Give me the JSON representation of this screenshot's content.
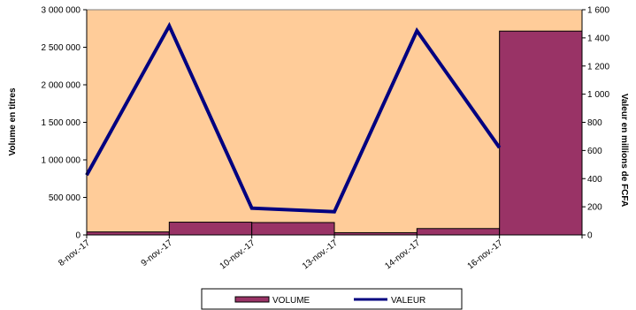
{
  "chart_data": {
    "type": "bar",
    "categories": [
      "8-nov.-17",
      "9-nov.-17",
      "10-nov.-17",
      "13-nov.-17",
      "14-nov.-17",
      "16-nov.-17"
    ],
    "series": [
      {
        "name": "VOLUME",
        "type": "bar",
        "axis": "left",
        "values": [
          40000,
          170000,
          165000,
          30000,
          85000,
          2715000
        ],
        "color": "#993366"
      },
      {
        "name": "VALEUR",
        "type": "line",
        "axis": "right",
        "values": [
          425,
          1485,
          190,
          165,
          1450,
          620
        ],
        "color": "#000080"
      }
    ],
    "ylabel": "Volume  en titres",
    "y2label": "Valeur en millions de FCFA",
    "ylim": [
      0,
      3000000
    ],
    "y2lim": [
      0,
      1600
    ],
    "yticks": [
      0,
      500000,
      1000000,
      1500000,
      2000000,
      2500000,
      3000000
    ],
    "yticklabels": [
      "0",
      "500 000",
      "1 000 000",
      "1 500 000",
      "2 000 000",
      "2 500 000",
      "3 000 000"
    ],
    "y2ticks": [
      0,
      200,
      400,
      600,
      800,
      1000,
      1200,
      1400,
      1600
    ],
    "y2ticklabels": [
      "0",
      "200",
      "400",
      "600",
      "800",
      "1 000",
      "1 200",
      "1 400",
      "1 600"
    ],
    "plot_background": "#FFCC99",
    "grid": false,
    "legend": "bottom"
  }
}
